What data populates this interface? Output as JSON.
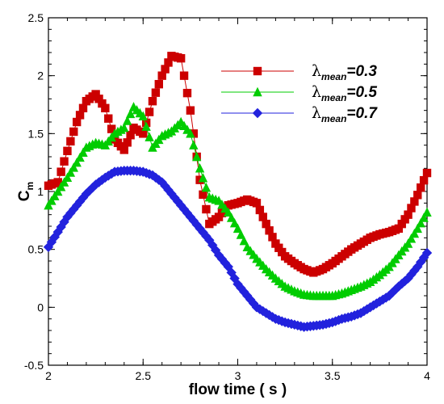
{
  "chart_data": {
    "type": "scatter",
    "xlabel": "flow time ( s )",
    "ylabel": {
      "main": "C",
      "sub": "m"
    },
    "xlim": [
      2,
      4
    ],
    "ylim": [
      -0.5,
      2.5
    ],
    "xticks": [
      "2",
      "2.5",
      "3",
      "3.5",
      "4"
    ],
    "yticks": [
      "-0.5",
      "0",
      "0.5",
      "1",
      "1.5",
      "2",
      "2.5"
    ],
    "xtick_values": [
      2,
      2.5,
      3,
      3.5,
      4
    ],
    "ytick_values": [
      -0.5,
      0,
      0.5,
      1,
      1.5,
      2,
      2.5
    ],
    "grid": false,
    "legend_position": "top-right",
    "series": [
      {
        "name": "λmean=0.3",
        "label": {
          "symbol": "λ",
          "sub": "mean",
          "suffix": "=0.3"
        },
        "color": "#cc0000",
        "marker": "square",
        "x": [
          2.0,
          2.05,
          2.1,
          2.15,
          2.2,
          2.25,
          2.3,
          2.35,
          2.4,
          2.45,
          2.5,
          2.55,
          2.6,
          2.65,
          2.7,
          2.75,
          2.8,
          2.85,
          2.9,
          2.95,
          3.0,
          3.05,
          3.1,
          3.15,
          3.2,
          3.25,
          3.3,
          3.35,
          3.4,
          3.45,
          3.5,
          3.55,
          3.6,
          3.65,
          3.7,
          3.75,
          3.8,
          3.85,
          3.9,
          3.95,
          4.0
        ],
        "y": [
          1.05,
          1.08,
          1.35,
          1.6,
          1.78,
          1.84,
          1.72,
          1.45,
          1.36,
          1.55,
          1.5,
          1.78,
          2.0,
          2.17,
          2.15,
          1.7,
          1.1,
          0.72,
          0.78,
          0.88,
          0.9,
          0.93,
          0.9,
          0.72,
          0.55,
          0.44,
          0.38,
          0.33,
          0.3,
          0.33,
          0.38,
          0.44,
          0.5,
          0.55,
          0.6,
          0.63,
          0.65,
          0.68,
          0.8,
          0.97,
          1.16
        ]
      },
      {
        "name": "λmean=0.5",
        "label": {
          "symbol": "λ",
          "sub": "mean",
          "suffix": "=0.5"
        },
        "color": "#00cc00",
        "marker": "triangle",
        "x": [
          2.0,
          2.05,
          2.1,
          2.15,
          2.2,
          2.25,
          2.3,
          2.35,
          2.4,
          2.45,
          2.5,
          2.55,
          2.6,
          2.65,
          2.7,
          2.75,
          2.8,
          2.85,
          2.9,
          2.95,
          3.0,
          3.05,
          3.1,
          3.15,
          3.2,
          3.25,
          3.3,
          3.35,
          3.4,
          3.45,
          3.5,
          3.55,
          3.6,
          3.65,
          3.7,
          3.75,
          3.8,
          3.85,
          3.9,
          3.95,
          4.0
        ],
        "y": [
          0.88,
          1.0,
          1.12,
          1.25,
          1.38,
          1.42,
          1.4,
          1.5,
          1.55,
          1.73,
          1.65,
          1.38,
          1.48,
          1.52,
          1.6,
          1.5,
          1.2,
          0.95,
          0.92,
          0.82,
          0.68,
          0.52,
          0.42,
          0.33,
          0.25,
          0.18,
          0.14,
          0.11,
          0.1,
          0.1,
          0.1,
          0.12,
          0.15,
          0.18,
          0.22,
          0.28,
          0.35,
          0.45,
          0.55,
          0.68,
          0.82
        ]
      },
      {
        "name": "λmean=0.7",
        "label": {
          "symbol": "λ",
          "sub": "mean",
          "suffix": "=0.7"
        },
        "color": "#2222dd",
        "marker": "diamond",
        "x": [
          2.0,
          2.05,
          2.1,
          2.15,
          2.2,
          2.25,
          2.3,
          2.35,
          2.4,
          2.45,
          2.5,
          2.55,
          2.6,
          2.65,
          2.7,
          2.75,
          2.8,
          2.85,
          2.9,
          2.95,
          3.0,
          3.05,
          3.1,
          3.15,
          3.2,
          3.25,
          3.3,
          3.35,
          3.4,
          3.45,
          3.5,
          3.55,
          3.6,
          3.65,
          3.7,
          3.75,
          3.8,
          3.85,
          3.9,
          3.95,
          4.0
        ],
        "y": [
          0.52,
          0.65,
          0.78,
          0.88,
          0.98,
          1.06,
          1.12,
          1.17,
          1.18,
          1.18,
          1.17,
          1.14,
          1.08,
          0.98,
          0.88,
          0.78,
          0.68,
          0.58,
          0.45,
          0.35,
          0.2,
          0.1,
          0.0,
          -0.05,
          -0.1,
          -0.13,
          -0.15,
          -0.17,
          -0.16,
          -0.15,
          -0.13,
          -0.1,
          -0.08,
          -0.05,
          0.0,
          0.05,
          0.1,
          0.18,
          0.25,
          0.35,
          0.47
        ]
      }
    ]
  }
}
